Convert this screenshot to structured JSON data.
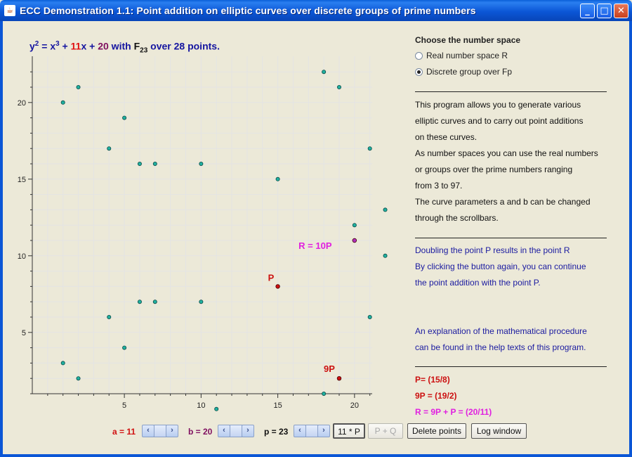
{
  "window": {
    "title": "ECC Demonstration 1.1: Point addition on elliptic curves over discrete groups of prime numbers"
  },
  "formula": {
    "y": "y",
    "y_exp": "2",
    "eq": " = x",
    "x_exp": "3",
    "plus1": " + ",
    "a": "11",
    "x": "x",
    "plus2": " + ",
    "b": "20",
    "with": " with ",
    "F": "F",
    "p": "23",
    "over": " over 28 points."
  },
  "panel": {
    "heading": "Choose the number space",
    "options": [
      {
        "label": "Real number space R",
        "selected": false
      },
      {
        "label": "Discrete group over Fp",
        "selected": true
      }
    ],
    "description": [
      "This program allows you to generate various",
      "elliptic curves and to carry out point additions",
      "on these curves.",
      "As number spaces you can use the real numbers",
      "or groups over the prime numbers ranging",
      "from 3 to 97.",
      "The curve parameters a and b can be changed",
      "through the scrollbars."
    ],
    "info": [
      "Doubling the point P results in the point R",
      "By clicking the button again, you can continue",
      "the point addition with the point P."
    ],
    "explanation": [
      "An explanation of the mathematical procedure",
      "can be found in the help texts of this program."
    ],
    "results": {
      "p": "P= (15/8)",
      "nine_p": "9P = (19/2)",
      "r": "R = 9P + P = (20/11)"
    }
  },
  "controls": {
    "a_label": "a = 11",
    "b_label": "b = 20",
    "p_label": "p = 23",
    "buttons": {
      "multiply": "11 * P",
      "add": "P + Q",
      "delete": "Delete points",
      "log": "Log window"
    }
  },
  "colors": {
    "point_fill": "#20b0a0",
    "p_color": "#cc1010",
    "r_color": "#e020e0",
    "r_point": "#b030c0",
    "grid": "#e4e4e4"
  },
  "chart_data": {
    "type": "scatter",
    "title": "",
    "xlabel": "",
    "ylabel": "",
    "xlim": [
      -1,
      22
    ],
    "ylim": [
      -1,
      22
    ],
    "xticks": [
      5,
      10,
      15,
      20
    ],
    "yticks": [
      5,
      10,
      15,
      20
    ],
    "grid": true,
    "curve_points": [
      [
        1,
        20
      ],
      [
        1,
        3
      ],
      [
        2,
        21
      ],
      [
        2,
        2
      ],
      [
        4,
        17
      ],
      [
        4,
        6
      ],
      [
        5,
        19
      ],
      [
        5,
        4
      ],
      [
        6,
        16
      ],
      [
        6,
        7
      ],
      [
        7,
        16
      ],
      [
        7,
        7
      ],
      [
        10,
        16
      ],
      [
        10,
        7
      ],
      [
        11,
        0
      ],
      [
        15,
        15
      ],
      [
        18,
        22
      ],
      [
        18,
        1
      ],
      [
        19,
        21
      ],
      [
        20,
        12
      ],
      [
        21,
        17
      ],
      [
        21,
        6
      ],
      [
        22,
        13
      ],
      [
        22,
        10
      ]
    ],
    "labeled_points": [
      {
        "label": "P",
        "x": 15,
        "y": 8
      },
      {
        "label": "9P",
        "x": 19,
        "y": 2
      },
      {
        "label": "R = 10P",
        "x": 20,
        "y": 11
      }
    ]
  }
}
